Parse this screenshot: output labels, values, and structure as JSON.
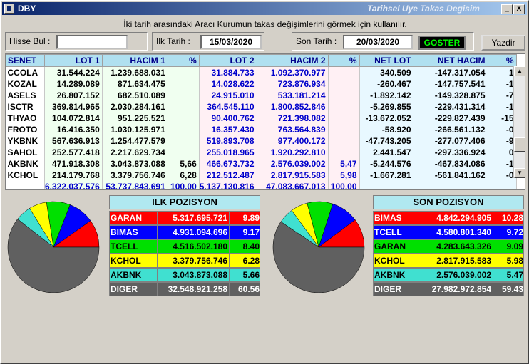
{
  "window": {
    "title": "DBY",
    "subtitle": "Tarihsel Uye Takas Degisim",
    "btn_min": "_",
    "btn_close": "X"
  },
  "info": "İki tarih arasındaki  Aracı Kurumun takas değişimlerini görmek için kullanılır.",
  "form": {
    "search_label": "Hisse Bul :",
    "search_value": "",
    "start_label": "Ilk Tarih :",
    "start_value": "15/03/2020",
    "end_label": "Son Tarih :",
    "end_value": "20/03/2020",
    "show_button": "GOSTER",
    "print_button": "Yazdir"
  },
  "colors": {
    "red": "#ff0000",
    "blue": "#0000ff",
    "green": "#00e000",
    "yellow": "#ffff00",
    "cyan": "#40e0d0",
    "grey": "#606060"
  },
  "grid": {
    "headers": [
      "SENET",
      "LOT 1",
      "HACIM 1",
      "%",
      "LOT 2",
      "HACIM 2",
      "%",
      "NET LOT",
      "NET HACIM",
      "%"
    ],
    "rows": [
      [
        "CCOLA",
        "31.544.224",
        "1.239.688.031",
        "",
        "31.884.733",
        "1.092.370.977",
        "",
        "340.509",
        "-147.317.054",
        "1"
      ],
      [
        "KOZAL",
        "14.289.089",
        "871.634.475",
        "",
        "14.028.622",
        "723.876.934",
        "",
        "-260.467",
        "-147.757.541",
        "-1"
      ],
      [
        "ASELS",
        "26.807.152",
        "682.510.089",
        "",
        "24.915.010",
        "533.181.214",
        "",
        "-1.892.142",
        "-149.328.875",
        "-7"
      ],
      [
        "ISCTR",
        "369.814.965",
        "2.030.284.161",
        "",
        "364.545.110",
        "1.800.852.846",
        "",
        "-5.269.855",
        "-229.431.314",
        "-1"
      ],
      [
        "THYAO",
        "104.072.814",
        "951.225.521",
        "",
        "90.400.762",
        "721.398.082",
        "",
        "-13.672.052",
        "-229.827.439",
        "-15"
      ],
      [
        "FROTO",
        "16.416.350",
        "1.030.125.971",
        "",
        "16.357.430",
        "763.564.839",
        "",
        "-58.920",
        "-266.561.132",
        "-0"
      ],
      [
        "YKBNK",
        "567.636.913",
        "1.254.477.579",
        "",
        "519.893.708",
        "977.400.172",
        "",
        "-47.743.205",
        "-277.077.406",
        "-9"
      ],
      [
        "SAHOL",
        "252.577.418",
        "2.217.629.734",
        "",
        "255.018.965",
        "1.920.292.810",
        "",
        "2.441.547",
        "-297.336.924",
        "0"
      ],
      [
        "AKBNK",
        "471.918.308",
        "3.043.873.088",
        "5,66",
        "466.673.732",
        "2.576.039.002",
        "5,47",
        "-5.244.576",
        "-467.834.086",
        "-1"
      ],
      [
        "KCHOL",
        "214.179.768",
        "3.379.756.746",
        "6,28",
        "212.512.487",
        "2.817.915.583",
        "5,98",
        "-1.667.281",
        "-561.841.162",
        "-0"
      ]
    ],
    "totals": [
      "",
      "6.322.037.576",
      "53.737.843.691",
      "100,00",
      "5.137.130.816",
      "47.083.667.013",
      "100,00",
      "",
      "",
      ""
    ]
  },
  "ilk": {
    "title": "ILK POZISYON",
    "rows": [
      {
        "name": "GARAN",
        "value": "5.317.695.721",
        "pct": "9.89",
        "bg": "#ff0000",
        "fg": "#ffffff"
      },
      {
        "name": "BIMAS",
        "value": "4.931.094.696",
        "pct": "9.17",
        "bg": "#0000ff",
        "fg": "#ffffff"
      },
      {
        "name": "TCELL",
        "value": "4.516.502.180",
        "pct": "8.40",
        "bg": "#00e000",
        "fg": "#000000"
      },
      {
        "name": "KCHOL",
        "value": "3.379.756.746",
        "pct": "6.28",
        "bg": "#ffff00",
        "fg": "#000000"
      },
      {
        "name": "AKBNK",
        "value": "3.043.873.088",
        "pct": "5.66",
        "bg": "#40e0d0",
        "fg": "#000000"
      },
      {
        "name": "DIGER",
        "value": "32.548.921.258",
        "pct": "60.56",
        "bg": "#606060",
        "fg": "#ffffff"
      }
    ],
    "pie": [
      9.89,
      9.17,
      8.4,
      6.28,
      5.66,
      60.56
    ]
  },
  "son": {
    "title": "SON POZISYON",
    "rows": [
      {
        "name": "BIMAS",
        "value": "4.842.294.905",
        "pct": "10.28",
        "bg": "#ff0000",
        "fg": "#ffffff"
      },
      {
        "name": "TCELL",
        "value": "4.580.801.340",
        "pct": "9.72",
        "bg": "#0000ff",
        "fg": "#ffffff"
      },
      {
        "name": "GARAN",
        "value": "4.283.643.326",
        "pct": "9.09",
        "bg": "#00e000",
        "fg": "#000000"
      },
      {
        "name": "KCHOL",
        "value": "2.817.915.583",
        "pct": "5.98",
        "bg": "#ffff00",
        "fg": "#000000"
      },
      {
        "name": "AKBNK",
        "value": "2.576.039.002",
        "pct": "5.47",
        "bg": "#40e0d0",
        "fg": "#000000"
      },
      {
        "name": "DIGER",
        "value": "27.982.972.854",
        "pct": "59.43",
        "bg": "#606060",
        "fg": "#ffffff"
      }
    ],
    "pie": [
      10.28,
      9.72,
      9.09,
      5.98,
      5.47,
      59.43
    ]
  }
}
